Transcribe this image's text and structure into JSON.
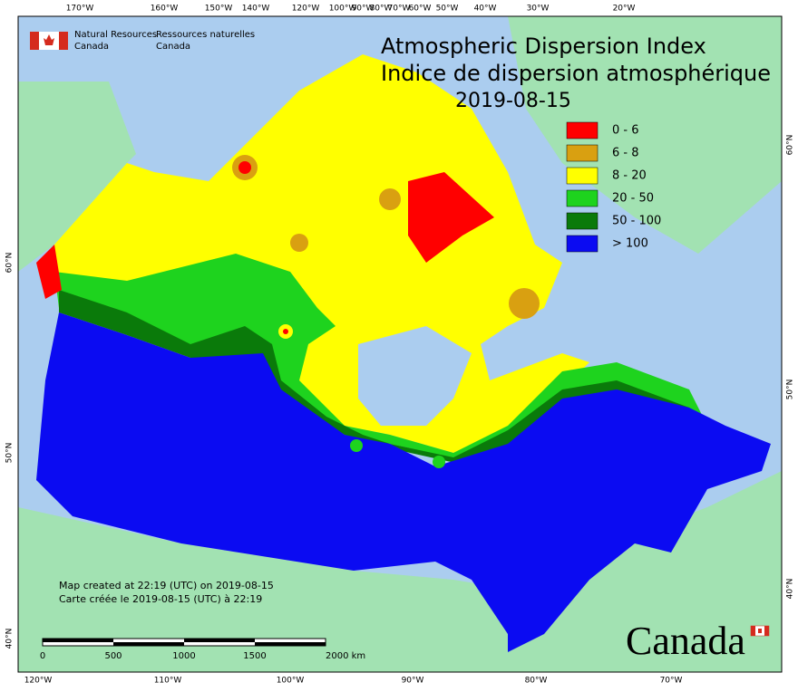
{
  "header": {
    "org_en_1": "Natural Resources",
    "org_en_2": "Canada",
    "org_fr_1": "Ressources naturelles",
    "org_fr_2": "Canada"
  },
  "title": {
    "line_1": "Atmospheric Dispersion Index",
    "line_2": "Indice de dispersion atmosphérique",
    "date": "2019-08-15"
  },
  "legend": [
    {
      "label": "0 - 6",
      "color": "#ff0000"
    },
    {
      "label": "6 - 8",
      "color": "#d9a011"
    },
    {
      "label": "8 - 20",
      "color": "#ffff00"
    },
    {
      "label": "20 - 50",
      "color": "#1ed31e"
    },
    {
      "label": "50 - 100",
      "color": "#0a7a0a"
    },
    {
      "label": "> 100",
      "color": "#0b0bf2"
    }
  ],
  "credits": [
    "Map created at 22:19 (UTC) on 2019-08-15",
    "Carte créée le 2019-08-15 (UTC) à 22:19"
  ],
  "top_axis": [
    "170°W",
    "160°W",
    "150°W",
    "140°W",
    "120°W",
    "100°W",
    "90°W",
    "80°W",
    "70°W",
    "60°W",
    "50°W",
    "40°W",
    "30°W",
    "20°W"
  ],
  "bottom_axis": [
    "120°W",
    "110°W",
    "100°W",
    "90°W",
    "80°W",
    "70°W"
  ],
  "left_axis": [
    "60°N",
    "50°N",
    "40°N"
  ],
  "right_axis": [
    "60°N",
    "50°N",
    "40°N"
  ],
  "scale_bar": [
    "0",
    "500",
    "1000",
    "1500",
    "2000 km"
  ],
  "wordmark": "Canada"
}
